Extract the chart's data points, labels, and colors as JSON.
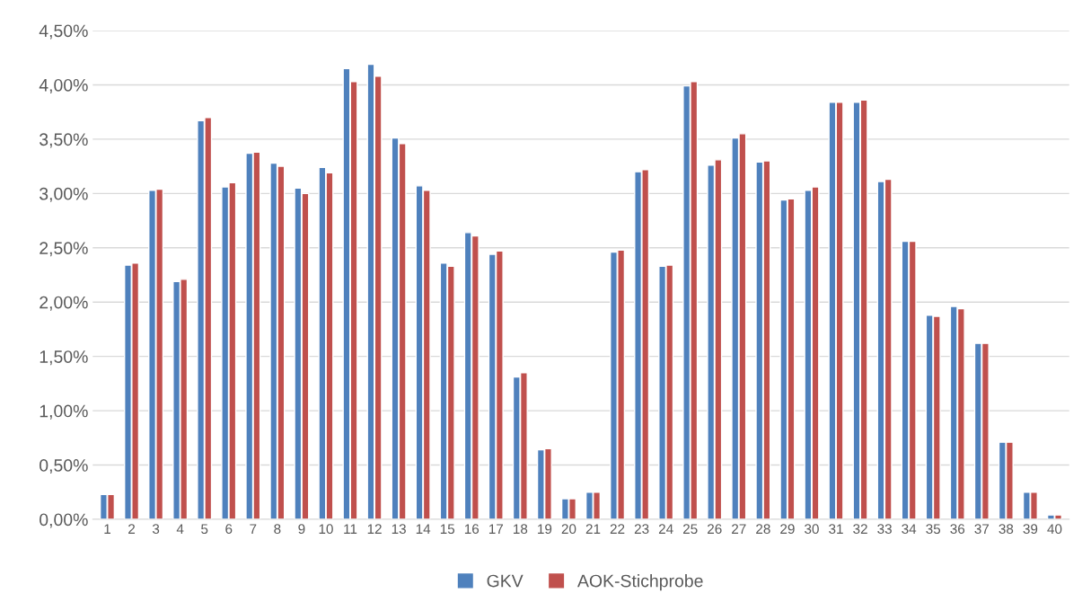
{
  "chart_data": {
    "type": "bar",
    "categories": [
      "1",
      "2",
      "3",
      "4",
      "5",
      "6",
      "7",
      "8",
      "9",
      "10",
      "11",
      "12",
      "13",
      "14",
      "15",
      "16",
      "17",
      "18",
      "19",
      "20",
      "21",
      "22",
      "23",
      "24",
      "25",
      "26",
      "27",
      "28",
      "29",
      "30",
      "31",
      "32",
      "33",
      "34",
      "35",
      "36",
      "37",
      "38",
      "39",
      "40"
    ],
    "series": [
      {
        "name": "GKV",
        "color": "#4f81bd",
        "values": [
          0.23,
          2.34,
          3.03,
          2.19,
          3.67,
          3.06,
          3.37,
          3.28,
          3.05,
          3.24,
          4.15,
          4.19,
          3.51,
          3.07,
          2.36,
          2.64,
          2.44,
          1.31,
          0.64,
          0.19,
          0.25,
          2.46,
          3.2,
          2.33,
          3.99,
          3.26,
          3.51,
          3.29,
          2.94,
          3.03,
          3.84,
          3.84,
          3.11,
          2.56,
          1.88,
          1.96,
          1.62,
          0.71,
          0.25,
          0.04
        ]
      },
      {
        "name": "AOK-Stichprobe",
        "color": "#c0504d",
        "values": [
          0.23,
          2.36,
          3.04,
          2.21,
          3.7,
          3.1,
          3.38,
          3.25,
          3.0,
          3.19,
          4.03,
          4.08,
          3.46,
          3.03,
          2.33,
          2.61,
          2.47,
          1.35,
          0.65,
          0.19,
          0.25,
          2.48,
          3.22,
          2.34,
          4.03,
          3.31,
          3.55,
          3.3,
          2.95,
          3.06,
          3.84,
          3.86,
          3.13,
          2.56,
          1.87,
          1.94,
          1.62,
          0.71,
          0.25,
          0.04
        ]
      }
    ],
    "ylim": [
      0,
      4.5
    ],
    "yticks": [
      {
        "value": 0,
        "label": "0,00%"
      },
      {
        "value": 0.5,
        "label": "0,50%"
      },
      {
        "value": 1,
        "label": "1,00%"
      },
      {
        "value": 1.5,
        "label": "1,50%"
      },
      {
        "value": 2,
        "label": "2,00%"
      },
      {
        "value": 2.5,
        "label": "2,50%"
      },
      {
        "value": 3,
        "label": "3,00%"
      },
      {
        "value": 3.5,
        "label": "3,50%"
      },
      {
        "value": 4,
        "label": "4,00%"
      },
      {
        "value": 4.5,
        "label": "4,50%"
      }
    ],
    "grid": "y",
    "legend": "bottom"
  }
}
